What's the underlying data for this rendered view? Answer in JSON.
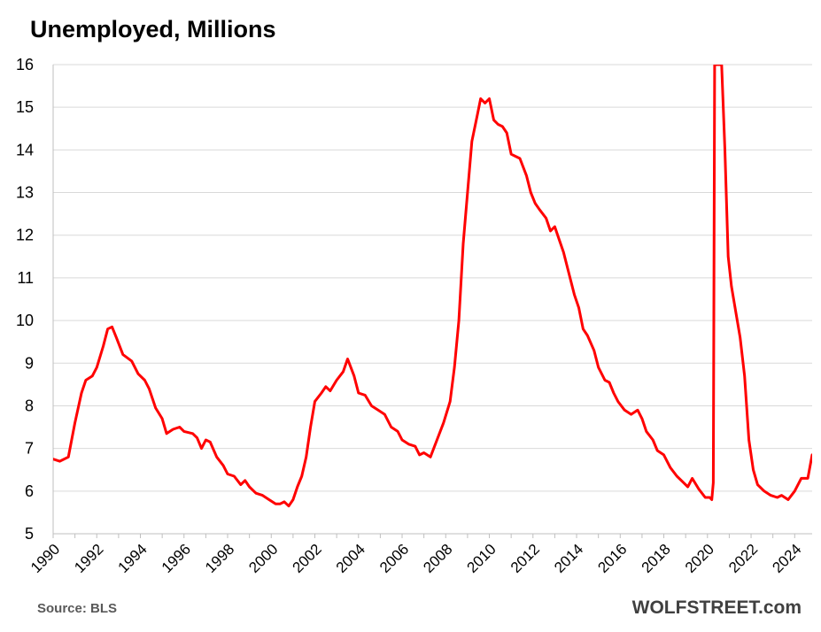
{
  "chart_data": {
    "type": "line",
    "title": "Unemployed, Millions",
    "source": "Source: BLS",
    "brand": "WOLFSTREET.com",
    "xlabel": "",
    "ylabel": "",
    "xlim": [
      1990,
      2024.8
    ],
    "ylim": [
      5,
      16
    ],
    "y_ticks": [
      "5",
      "6",
      "7",
      "8",
      "9",
      "10",
      "11",
      "12",
      "13",
      "14",
      "15",
      "16"
    ],
    "x_ticks": [
      "1990",
      "1992",
      "1994",
      "1996",
      "1998",
      "2000",
      "2002",
      "2004",
      "2006",
      "2008",
      "2010",
      "2012",
      "2014",
      "2016",
      "2018",
      "2020",
      "2022",
      "2024"
    ],
    "grid": "horizontal",
    "line_color": "#ff0000",
    "series": [
      {
        "name": "",
        "x": [
          1990.0,
          1990.3,
          1990.7,
          1991.0,
          1991.3,
          1991.5,
          1991.8,
          1992.0,
          1992.3,
          1992.5,
          1992.7,
          1992.9,
          1993.2,
          1993.6,
          1993.9,
          1994.2,
          1994.4,
          1994.7,
          1995.0,
          1995.2,
          1995.5,
          1995.8,
          1996.0,
          1996.4,
          1996.6,
          1996.8,
          1997.0,
          1997.2,
          1997.5,
          1997.8,
          1998.0,
          1998.3,
          1998.6,
          1998.8,
          1999.0,
          1999.3,
          1999.6,
          1999.9,
          2000.2,
          2000.4,
          2000.6,
          2000.8,
          2001.0,
          2001.2,
          2001.4,
          2001.6,
          2001.8,
          2002.0,
          2002.3,
          2002.5,
          2002.7,
          2003.0,
          2003.3,
          2003.5,
          2003.8,
          2004.0,
          2004.3,
          2004.6,
          2004.9,
          2005.2,
          2005.5,
          2005.8,
          2006.0,
          2006.3,
          2006.6,
          2006.8,
          2007.0,
          2007.3,
          2007.6,
          2007.9,
          2008.2,
          2008.4,
          2008.6,
          2008.8,
          2009.0,
          2009.2,
          2009.4,
          2009.6,
          2009.8,
          2010.0,
          2010.2,
          2010.4,
          2010.6,
          2010.8,
          2011.0,
          2011.2,
          2011.4,
          2011.7,
          2011.9,
          2012.1,
          2012.3,
          2012.6,
          2012.8,
          2013.0,
          2013.2,
          2013.4,
          2013.6,
          2013.9,
          2014.1,
          2014.3,
          2014.5,
          2014.8,
          2015.0,
          2015.3,
          2015.5,
          2015.7,
          2015.9,
          2016.2,
          2016.5,
          2016.8,
          2017.0,
          2017.2,
          2017.5,
          2017.7,
          2018.0,
          2018.3,
          2018.6,
          2018.9,
          2019.1,
          2019.3,
          2019.6,
          2019.9,
          2020.1,
          2020.2,
          2020.27,
          2020.33,
          2020.45,
          2020.55,
          2020.65,
          2020.8,
          2020.95,
          2021.1,
          2021.3,
          2021.5,
          2021.7,
          2021.9,
          2022.1,
          2022.3,
          2022.6,
          2022.9,
          2023.2,
          2023.4,
          2023.7,
          2024.0,
          2024.3,
          2024.6,
          2024.8
        ],
        "values": [
          6.75,
          6.7,
          6.8,
          7.6,
          8.3,
          8.6,
          8.7,
          8.9,
          9.4,
          9.8,
          9.85,
          9.6,
          9.2,
          9.05,
          8.75,
          8.6,
          8.4,
          7.95,
          7.7,
          7.35,
          7.45,
          7.5,
          7.4,
          7.35,
          7.25,
          7.0,
          7.2,
          7.15,
          6.8,
          6.6,
          6.4,
          6.35,
          6.15,
          6.25,
          6.1,
          5.95,
          5.9,
          5.8,
          5.7,
          5.7,
          5.75,
          5.65,
          5.8,
          6.1,
          6.35,
          6.8,
          7.5,
          8.1,
          8.3,
          8.45,
          8.35,
          8.6,
          8.8,
          9.1,
          8.7,
          8.3,
          8.25,
          8.0,
          7.9,
          7.8,
          7.5,
          7.4,
          7.2,
          7.1,
          7.05,
          6.85,
          6.9,
          6.8,
          7.2,
          7.6,
          8.1,
          8.9,
          10.0,
          11.8,
          13.0,
          14.2,
          14.7,
          15.2,
          15.1,
          15.2,
          14.7,
          14.6,
          14.55,
          14.4,
          13.9,
          13.85,
          13.8,
          13.4,
          13.0,
          12.75,
          12.6,
          12.4,
          12.1,
          12.2,
          11.9,
          11.6,
          11.2,
          10.6,
          10.3,
          9.8,
          9.65,
          9.3,
          8.9,
          8.6,
          8.55,
          8.3,
          8.1,
          7.9,
          7.8,
          7.9,
          7.7,
          7.4,
          7.2,
          6.95,
          6.85,
          6.55,
          6.35,
          6.2,
          6.1,
          6.3,
          6.05,
          5.85,
          5.85,
          5.8,
          6.2,
          16.0,
          16.0,
          16.0,
          16.0,
          14.0,
          11.5,
          10.8,
          10.2,
          9.6,
          8.7,
          7.2,
          6.5,
          6.15,
          6.0,
          5.9,
          5.85,
          5.9,
          5.8,
          6.0,
          6.3,
          6.3,
          6.85
        ]
      }
    ]
  }
}
